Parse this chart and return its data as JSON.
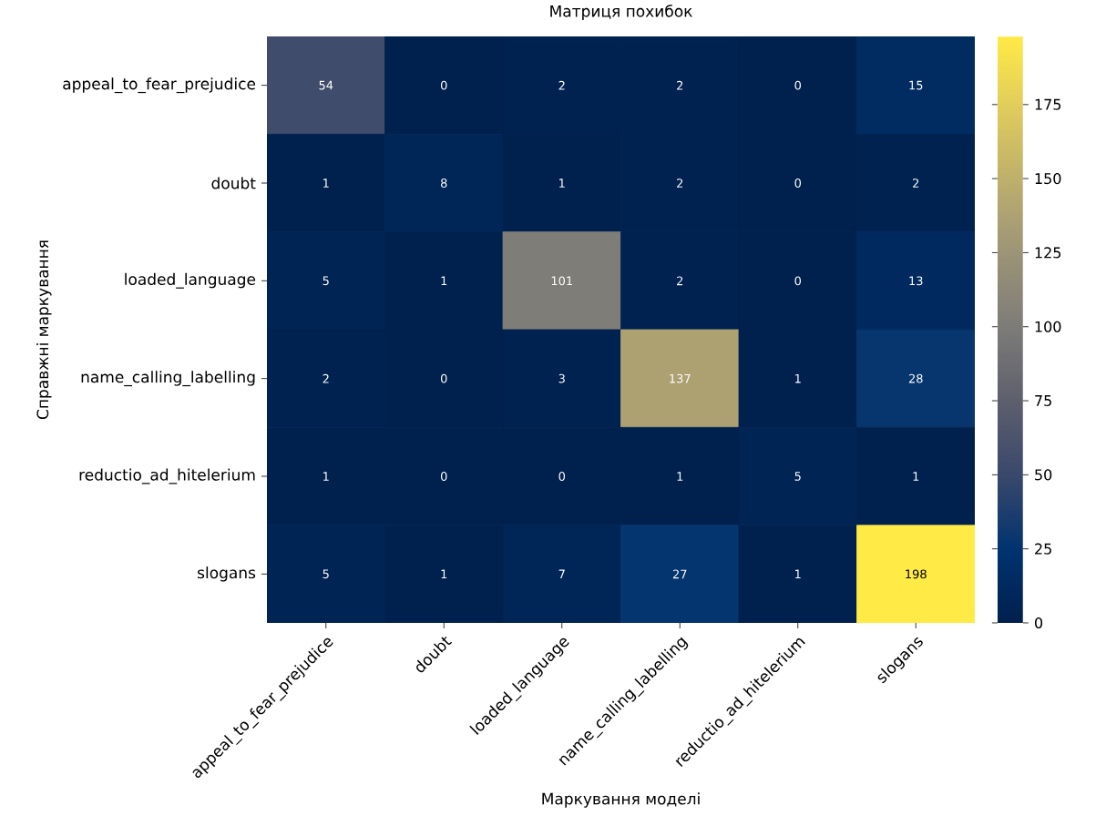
{
  "chart_data": {
    "type": "heatmap",
    "title": "Матриця похибок",
    "xlabel": "Маркування моделі",
    "ylabel": "Справжні маркування",
    "categories": [
      "appeal_to_fear_prejudice",
      "doubt",
      "loaded_language",
      "name_calling_labelling",
      "reductio_ad_hitelerium",
      "slogans"
    ],
    "y_categories": [
      "appeal_to_fear_prejudice",
      "doubt",
      "loaded_language",
      "name_calling_labelling",
      "reductio_ad_hitelerium",
      "slogans"
    ],
    "cells": [
      [
        54,
        0,
        2,
        2,
        0,
        15
      ],
      [
        1,
        8,
        1,
        2,
        0,
        2
      ],
      [
        5,
        1,
        101,
        2,
        0,
        13
      ],
      [
        2,
        0,
        3,
        137,
        1,
        28
      ],
      [
        1,
        0,
        0,
        1,
        5,
        1
      ],
      [
        5,
        1,
        7,
        27,
        1,
        198
      ]
    ],
    "data_labels": true,
    "clim": [
      0,
      198
    ],
    "cticks": [
      0,
      25,
      50,
      75,
      100,
      125,
      150,
      175
    ]
  }
}
